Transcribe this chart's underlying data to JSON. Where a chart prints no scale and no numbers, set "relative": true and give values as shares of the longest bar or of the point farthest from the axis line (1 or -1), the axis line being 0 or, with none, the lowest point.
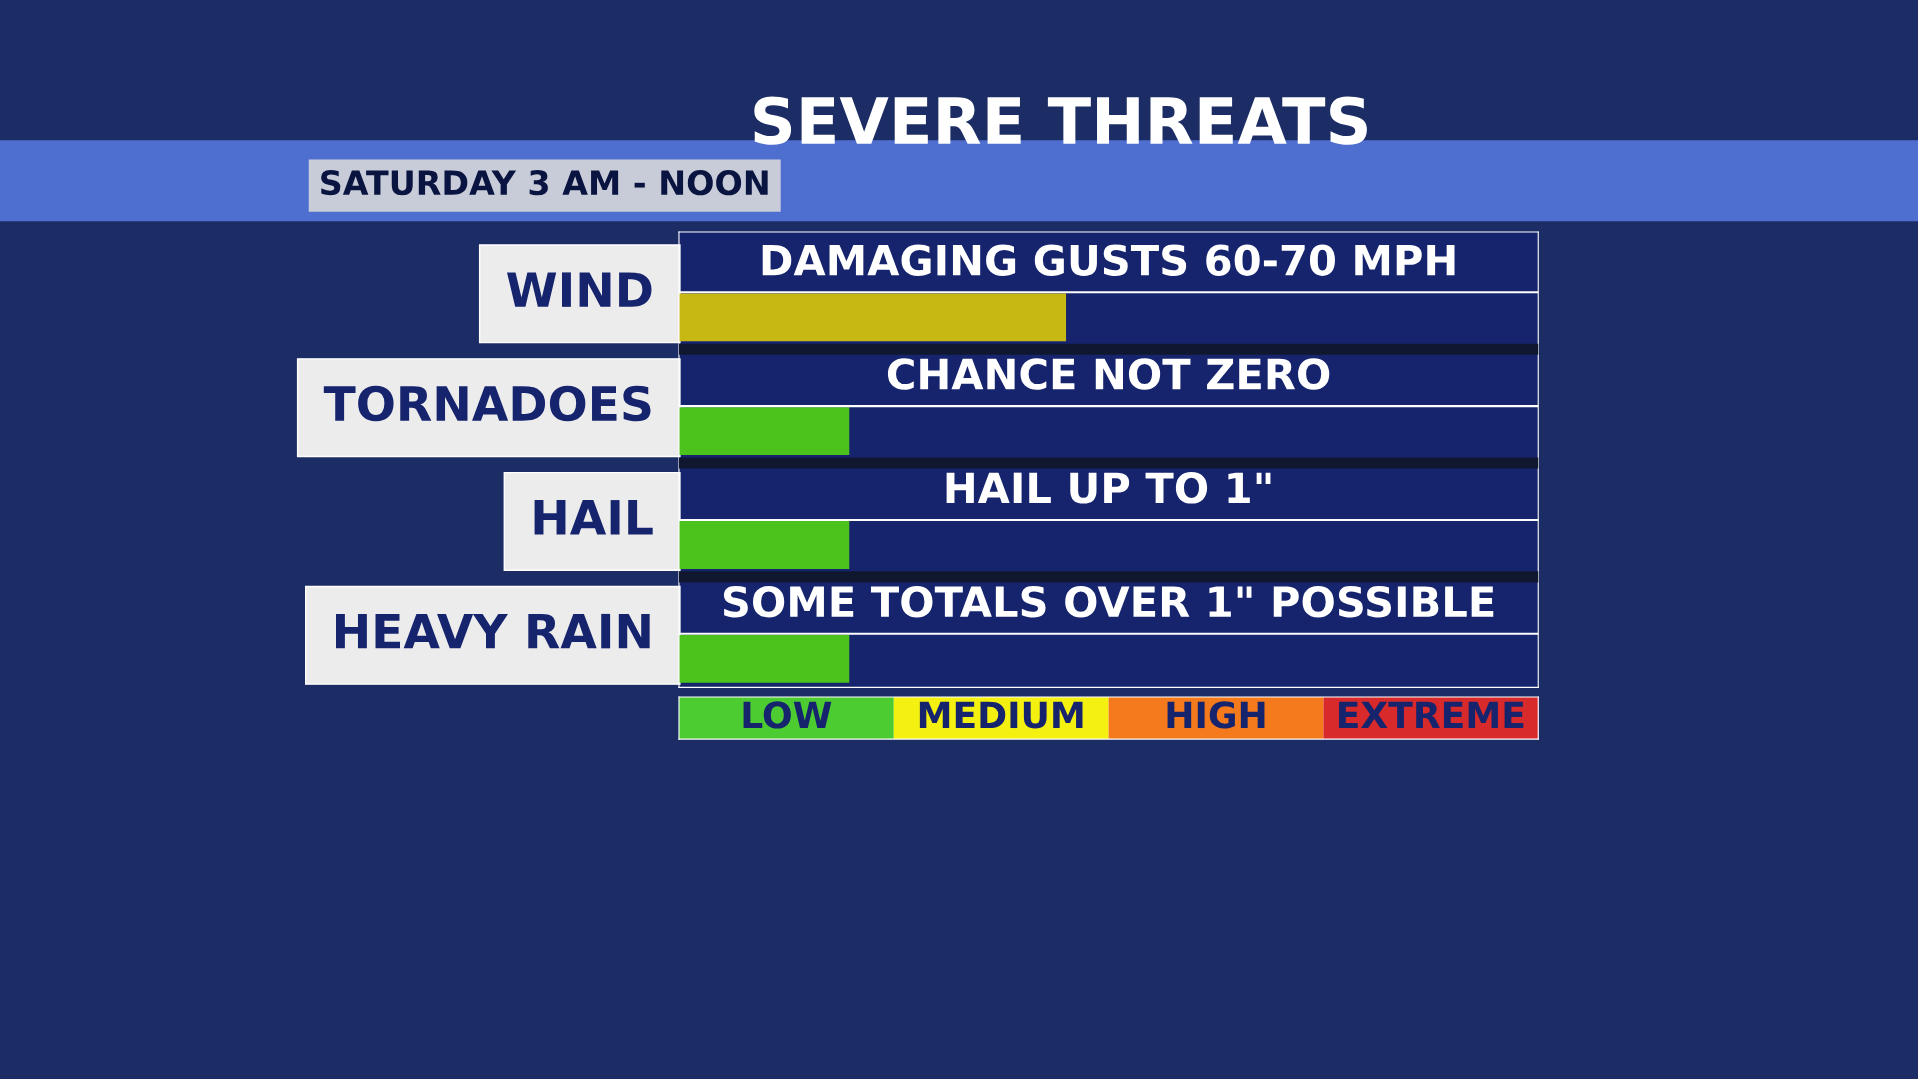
{
  "chart_data": {
    "type": "bar",
    "orientation": "horizontal",
    "title": "SEVERE THREATS",
    "subtitle": "SATURDAY 3 AM - NOON",
    "categories": [
      "WIND",
      "TORNADOES",
      "HAIL",
      "HEAVY RAIN"
    ],
    "values": [
      1,
      0.44,
      0.44,
      0.44
    ],
    "relative": true,
    "colors": [
      "#c8b814",
      "#4cc21c",
      "#4cc21c",
      "#4cc21c"
    ],
    "annotations": [
      "DAMAGING GUSTS 60-70 MPH",
      "CHANCE NOT ZERO",
      "HAIL UP TO 1\"",
      "SOME TOTALS OVER 1\" POSSIBLE",
      "LOW",
      "MEDIUM",
      "HIGH",
      "EXTREME"
    ],
    "grid": false,
    "legend": false
  }
}
